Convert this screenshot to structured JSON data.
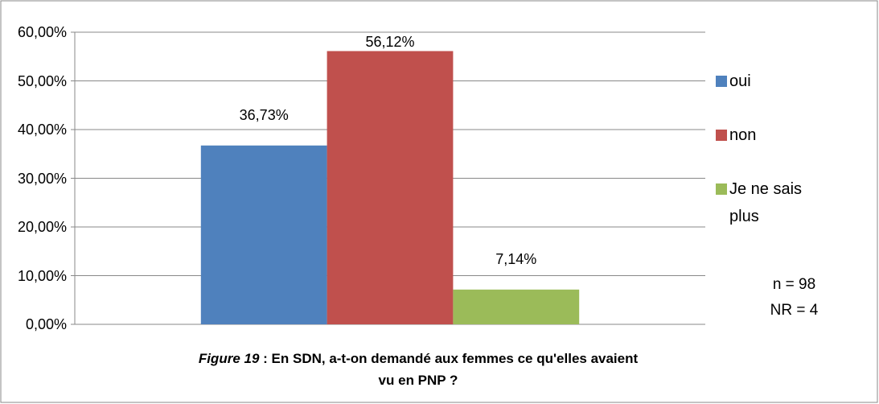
{
  "chart_data": {
    "type": "bar",
    "categories": [
      null
    ],
    "series": [
      {
        "name": "oui",
        "color": "#4f81bd",
        "values": [
          36.73
        ],
        "value_labels": [
          "36,73%"
        ]
      },
      {
        "name": "non",
        "color": "#c0504d",
        "values": [
          56.12
        ],
        "value_labels": [
          "56,12%"
        ]
      },
      {
        "name": "Je ne sais plus",
        "color": "#9bbb59",
        "values": [
          7.14
        ],
        "value_labels": [
          "7,14%"
        ]
      }
    ],
    "ylim": [
      0,
      60
    ],
    "yticks": [
      {
        "value": 0,
        "label": "0,00%"
      },
      {
        "value": 10,
        "label": "10,00%"
      },
      {
        "value": 20,
        "label": "20,00%"
      },
      {
        "value": 30,
        "label": "30,00%"
      },
      {
        "value": 40,
        "label": "40,00%"
      },
      {
        "value": 50,
        "label": "50,00%"
      },
      {
        "value": 60,
        "label": "60,00%"
      }
    ],
    "grid": true,
    "legend": "right",
    "annotations": [
      "n = 98",
      "NR = 4"
    ],
    "caption": {
      "label": "Figure 19",
      "text": " : En SDN,  a-t-on demandé aux femmes ce qu'elles avaient vu en PNP ?"
    }
  }
}
